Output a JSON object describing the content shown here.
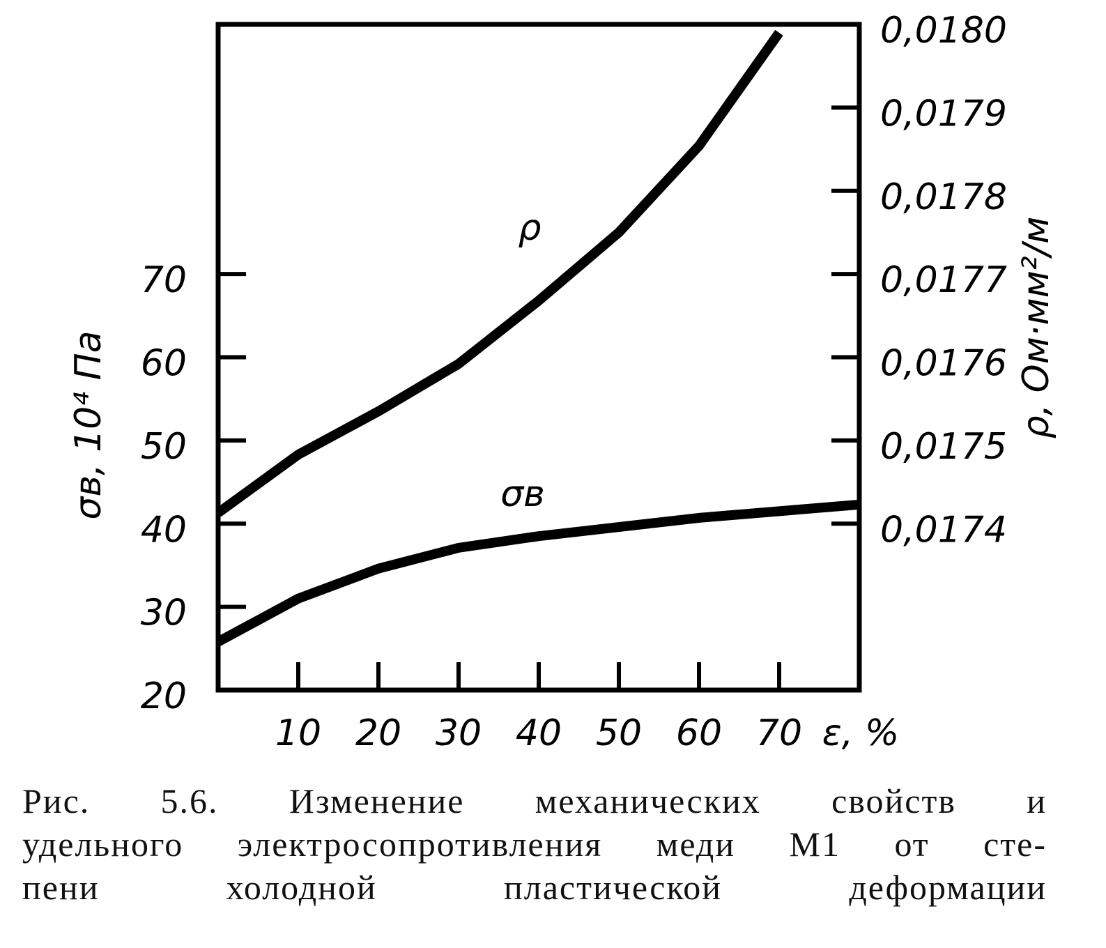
{
  "chart_data": {
    "type": "line",
    "x": [
      0,
      10,
      20,
      30,
      40,
      50,
      60,
      70,
      80
    ],
    "xlim": [
      0,
      80
    ],
    "xticks": [
      10,
      20,
      30,
      40,
      50,
      60,
      70
    ],
    "xlabel": "ε, %",
    "ylim": [
      20,
      100
    ],
    "yticks": [
      20,
      30,
      40,
      50,
      60,
      70
    ],
    "ylabel": "σв, 10⁴ Па",
    "y2lim": [
      0.0172,
      0.018
    ],
    "y2ticks": [
      {
        "value": 0.0174,
        "label": "0,0174"
      },
      {
        "value": 0.0175,
        "label": "0,0175"
      },
      {
        "value": 0.0176,
        "label": "0,0176"
      },
      {
        "value": 0.0177,
        "label": "0,0177"
      },
      {
        "value": 0.0178,
        "label": "0,0178"
      },
      {
        "value": 0.0179,
        "label": "0,0179"
      },
      {
        "value": 0.018,
        "label": "0,0180"
      }
    ],
    "y2label": "ρ, Ом·мм²/м",
    "grid": false,
    "series": [
      {
        "name": "ρ",
        "color": "#000000",
        "axis": "y2",
        "values": [
          0.017413,
          0.017483,
          0.017535,
          0.017592,
          0.017668,
          0.01775,
          0.017854,
          0.01799,
          null
        ]
      },
      {
        "name": "σв",
        "color": "#000000",
        "values": [
          25.8,
          31,
          34.6,
          37.1,
          38.5,
          39.6,
          40.7,
          41.5,
          42.3
        ]
      }
    ],
    "caption": [
      "Рис. 5.6. Изменение механических свойств и",
      "удельного электросопротивления меди М1 от сте-",
      "пени холодной пластической деформации"
    ]
  }
}
